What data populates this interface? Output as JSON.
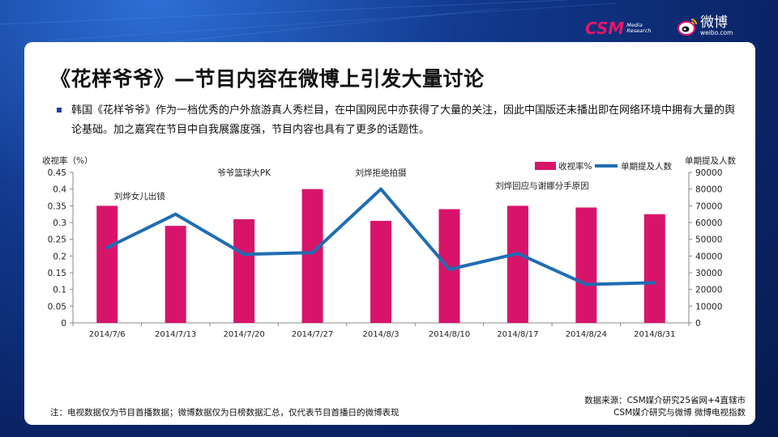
{
  "header": {
    "csm_logo": "CSM",
    "csm_logo_sub_1": "Media",
    "csm_logo_sub_2": "Research",
    "weibo_logo": "微博",
    "weibo_logo_sub": "weibo.com"
  },
  "title": "《花样爷爷》—节目内容在微博上引发大量讨论",
  "paragraph": "韩国《花样爷爷》作为一档优秀的户外旅游真人秀栏目，在中国网民中亦获得了大量的关注，因此中国版还未播出即在网络环境中拥有大量的舆论基础。加之嘉宾在节目中自我展露度强，节目内容也具有了更多的话题性。",
  "colors": {
    "bar": "#d8146a",
    "line": "#1f6db3",
    "bullet": "#1b3f9c"
  },
  "chart_data": {
    "type": "bar",
    "left_axis_title": "收视率（%）",
    "right_axis_title": "单期提及人数",
    "categories": [
      "2014/7/6",
      "2014/7/13",
      "2014/7/20",
      "2014/7/27",
      "2014/8/3",
      "2014/8/10",
      "2014/8/17",
      "2014/8/24",
      "2014/8/31"
    ],
    "series": [
      {
        "name": "收视率%",
        "type": "bar",
        "axis": "left",
        "values": [
          0.35,
          0.29,
          0.31,
          0.4,
          0.305,
          0.34,
          0.35,
          0.345,
          0.325
        ]
      },
      {
        "name": "单期提及人数",
        "type": "line",
        "axis": "right",
        "values": [
          45000,
          65000,
          41000,
          42000,
          80000,
          32000,
          41500,
          23000,
          24000
        ]
      }
    ],
    "left_axis": {
      "min": 0,
      "max": 0.45,
      "ticks": [
        "0",
        "0.05",
        "0.1",
        "0.15",
        "0.2",
        "0.25",
        "0.3",
        "0.35",
        "0.4",
        "0.45"
      ]
    },
    "right_axis": {
      "min": 0,
      "max": 90000,
      "ticks": [
        "0",
        "10000",
        "20000",
        "30000",
        "40000",
        "50000",
        "60000",
        "70000",
        "80000",
        "90000"
      ]
    },
    "legend_placement": "top-right",
    "grid": false,
    "annotations": [
      {
        "text": "刘烨女儿出镜",
        "category": "2014/7/6"
      },
      {
        "text": "爷爷篮球大PK",
        "category": "2014/7/20"
      },
      {
        "text": "刘烨拒绝拍摄",
        "category": "2014/8/3"
      },
      {
        "text": "刘烨回应与谢娜分手原因",
        "category": "2014/8/17"
      }
    ]
  },
  "footnote": "注：电视数据仅为节目首播数据；微博数据仅为日榜数据汇总，仅代表节目首播日的微博表现",
  "source_line_1": "数据来源：CSM媒介研究25省网+4直辖市",
  "source_line_2": "CSM媒介研究与微博 微博电视指数"
}
